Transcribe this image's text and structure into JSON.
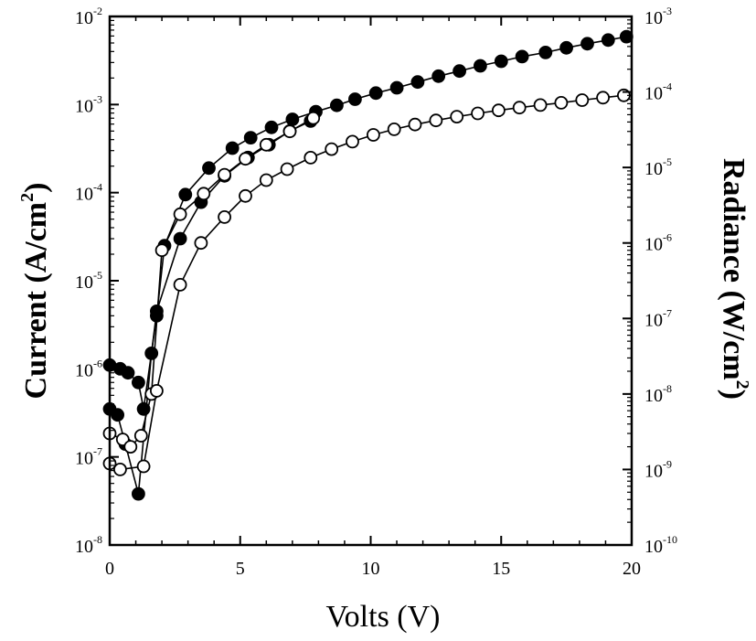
{
  "chart_data": {
    "type": "scatter",
    "title": "",
    "xlabel": "Volts (V)",
    "ylabel_left": "Current (A/cm",
    "ylabel_left_sup": "2",
    "ylabel_left_close": ")",
    "ylabel_right": "Radiance (W/cm",
    "ylabel_right_sup": "2",
    "ylabel_right_close": ")",
    "xlim": [
      0,
      20
    ],
    "ylim_left_log10": [
      -8,
      -2
    ],
    "ylim_right_log10": [
      -10,
      -3
    ],
    "x_ticks": [
      0,
      5,
      10,
      15,
      20
    ],
    "x_tick_labels": [
      "0",
      "5",
      "10",
      "15",
      "20"
    ],
    "left_ticks": [
      {
        "base": "10",
        "exp": "-2",
        "log": -2
      },
      {
        "base": "10",
        "exp": "-3",
        "log": -3
      },
      {
        "base": "10",
        "exp": "-4",
        "log": -4
      },
      {
        "base": "10",
        "exp": "-5",
        "log": -5
      },
      {
        "base": "10",
        "exp": "-6",
        "log": -6
      },
      {
        "base": "10",
        "exp": "-7",
        "log": -7
      },
      {
        "base": "10",
        "exp": "-8",
        "log": -8
      }
    ],
    "right_ticks": [
      {
        "base": "10",
        "exp": "-3",
        "log": -3
      },
      {
        "base": "10",
        "exp": "-4",
        "log": -4
      },
      {
        "base": "10",
        "exp": "-5",
        "log": -5
      },
      {
        "base": "10",
        "exp": "-6",
        "log": -6
      },
      {
        "base": "10",
        "exp": "-7",
        "log": -7
      },
      {
        "base": "10",
        "exp": "-8",
        "log": -8
      },
      {
        "base": "10",
        "exp": "-9",
        "log": -9
      },
      {
        "base": "10",
        "exp": "-10",
        "log": -10
      }
    ],
    "series": [
      {
        "name": "Current (filled, upper)",
        "marker": "filled",
        "axis": "left",
        "x": [
          0.0,
          0.4,
          0.7,
          1.1,
          1.3,
          1.8,
          2.1,
          2.9,
          3.8,
          4.7,
          5.4,
          6.2,
          7.0,
          7.9,
          8.7,
          9.4,
          10.2,
          11.0,
          11.8,
          12.6,
          13.4,
          14.2,
          15.0,
          15.8,
          16.7,
          17.5,
          18.3,
          19.1,
          19.8
        ],
        "y": [
          1.1e-06,
          1e-06,
          9e-07,
          7e-07,
          3.5e-07,
          4e-06,
          2.5e-05,
          9.5e-05,
          0.00019,
          0.00032,
          0.00042,
          0.00055,
          0.00068,
          0.00083,
          0.00098,
          0.00115,
          0.00135,
          0.00155,
          0.0018,
          0.0021,
          0.0024,
          0.00275,
          0.0031,
          0.0035,
          0.0039,
          0.0044,
          0.0049,
          0.0054,
          0.0059
        ]
      },
      {
        "name": "Current (filled, lower)",
        "marker": "filled",
        "axis": "left",
        "x": [
          0.0,
          0.3,
          0.6,
          1.1,
          1.6,
          1.8,
          2.7,
          3.5,
          4.4,
          5.3,
          6.1,
          6.9,
          7.7
        ],
        "y": [
          3.5e-07,
          3e-07,
          1.4e-07,
          3.8e-08,
          1.5e-06,
          4.5e-06,
          3e-05,
          7.8e-05,
          0.000155,
          0.00025,
          0.00035,
          0.0005,
          0.00065
        ]
      },
      {
        "name": "Radiance (open, upper)",
        "marker": "open",
        "axis": "right",
        "x": [
          0.0,
          0.5,
          0.8,
          1.2,
          1.6,
          2.0,
          2.7,
          3.6,
          4.4,
          5.2,
          6.0,
          6.9,
          7.8
        ],
        "y": [
          3e-09,
          2.5e-09,
          2e-09,
          2.8e-09,
          1e-08,
          8e-07,
          2.4e-06,
          4.5e-06,
          8e-06,
          1.3e-05,
          2e-05,
          3e-05,
          4.5e-05
        ]
      },
      {
        "name": "Radiance (open, lower)",
        "marker": "open",
        "axis": "right",
        "x": [
          0.0,
          0.4,
          1.3,
          1.8,
          2.7,
          3.5,
          4.4,
          5.2,
          6.0,
          6.8,
          7.7,
          8.5,
          9.3,
          10.1,
          10.9,
          11.7,
          12.5,
          13.3,
          14.1,
          14.9,
          15.7,
          16.5,
          17.3,
          18.1,
          18.9,
          19.7
        ],
        "y": [
          1.2e-09,
          1e-09,
          1.1e-09,
          1.1e-08,
          2.8e-07,
          1e-06,
          2.2e-06,
          4.2e-06,
          6.8e-06,
          9.5e-06,
          1.35e-05,
          1.75e-05,
          2.2e-05,
          2.7e-05,
          3.2e-05,
          3.7e-05,
          4.2e-05,
          4.7e-05,
          5.2e-05,
          5.7e-05,
          6.2e-05,
          6.7e-05,
          7.2e-05,
          7.8e-05,
          8.4e-05,
          9e-05
        ]
      }
    ]
  }
}
